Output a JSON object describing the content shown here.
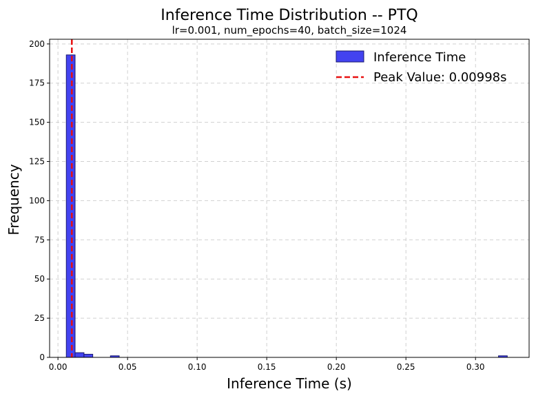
{
  "chart_data": {
    "type": "bar",
    "title": "Inference Time Distribution -- PTQ",
    "subtitle": "lr=0.001, num_epochs=40, batch_size=1024",
    "xlabel": "Inference Time (s)",
    "ylabel": "Frequency",
    "xlim": [
      -0.006,
      0.3385
    ],
    "ylim": [
      0,
      203
    ],
    "xticks": [
      0.0,
      0.05,
      0.1,
      0.15,
      0.2,
      0.25,
      0.3
    ],
    "xtick_labels": [
      "0.00",
      "0.05",
      "0.10",
      "0.15",
      "0.20",
      "0.25",
      "0.30"
    ],
    "yticks": [
      0,
      25,
      50,
      75,
      100,
      125,
      150,
      175,
      200
    ],
    "ytick_labels": [
      "0",
      "25",
      "50",
      "75",
      "100",
      "125",
      "150",
      "175",
      "200"
    ],
    "grid": true,
    "legend_position": "top-right",
    "bar_color": "#4343f0",
    "bar_edge_color": "#1a1a6e",
    "peak_color": "#e81010",
    "grid_color": "#d0d0d0",
    "series": [
      {
        "name": "Inference Time",
        "bins": [
          {
            "x0": 0.006,
            "x1": 0.0123,
            "count": 193
          },
          {
            "x0": 0.0123,
            "x1": 0.0187,
            "count": 3
          },
          {
            "x0": 0.0187,
            "x1": 0.025,
            "count": 2
          },
          {
            "x0": 0.0377,
            "x1": 0.044,
            "count": 1
          },
          {
            "x0": 0.3165,
            "x1": 0.3228,
            "count": 1
          }
        ]
      }
    ],
    "peak": {
      "legend_label": "Peak Value: 0.00998s",
      "value": 0.00998
    }
  }
}
